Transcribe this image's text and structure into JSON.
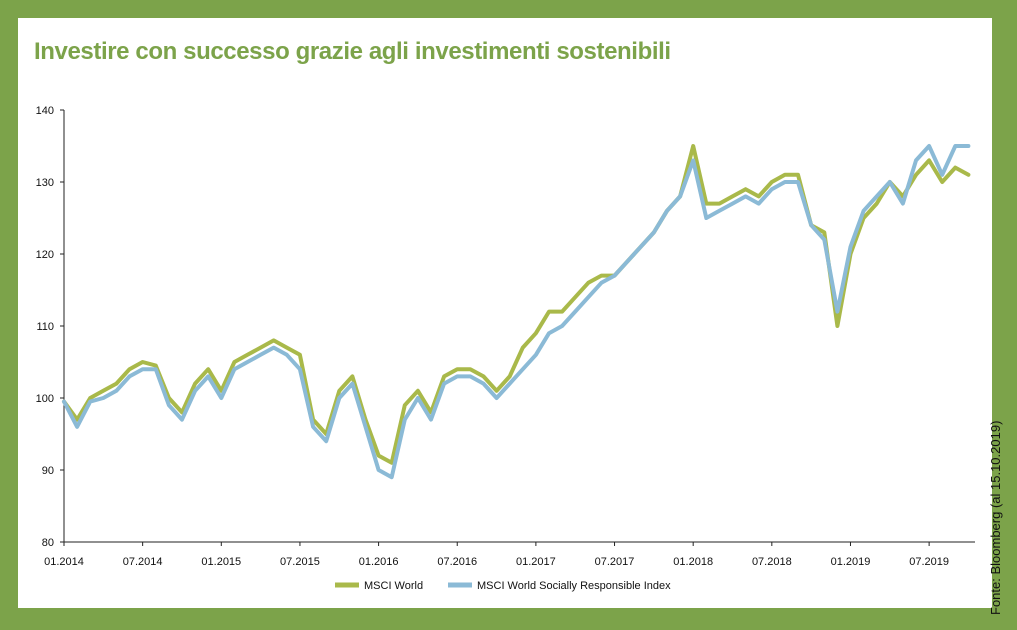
{
  "title": "Investire con successo grazie agli investimenti sostenibili",
  "source": "Fonte: Bloomberg (al 15.10.2019)",
  "colors": {
    "frame": "#7ca34a",
    "msci_world": "#a9b94a",
    "msci_sri": "#8bbad6"
  },
  "chart_data": {
    "type": "line",
    "title": "Investire con successo grazie agli investimenti sostenibili",
    "xlabel": "",
    "ylabel": "",
    "ylim": [
      80,
      140
    ],
    "yticks": [
      80,
      90,
      100,
      110,
      120,
      130,
      140
    ],
    "xlim": [
      "2014-01",
      "2019-10"
    ],
    "xticks": [
      "01.2014",
      "07.2014",
      "01.2015",
      "07.2015",
      "01.2016",
      "07.2016",
      "01.2017",
      "07.2017",
      "01.2018",
      "07.2018",
      "01.2019",
      "07.2019"
    ],
    "grid": false,
    "legend": "bottom-center",
    "x": [
      "2014-01",
      "2014-02",
      "2014-03",
      "2014-04",
      "2014-05",
      "2014-06",
      "2014-07",
      "2014-08",
      "2014-09",
      "2014-10",
      "2014-11",
      "2014-12",
      "2015-01",
      "2015-02",
      "2015-03",
      "2015-04",
      "2015-05",
      "2015-06",
      "2015-07",
      "2015-08",
      "2015-09",
      "2015-10",
      "2015-11",
      "2015-12",
      "2016-01",
      "2016-02",
      "2016-03",
      "2016-04",
      "2016-05",
      "2016-06",
      "2016-07",
      "2016-08",
      "2016-09",
      "2016-10",
      "2016-11",
      "2016-12",
      "2017-01",
      "2017-02",
      "2017-03",
      "2017-04",
      "2017-05",
      "2017-06",
      "2017-07",
      "2017-08",
      "2017-09",
      "2017-10",
      "2017-11",
      "2017-12",
      "2018-01",
      "2018-02",
      "2018-03",
      "2018-04",
      "2018-05",
      "2018-06",
      "2018-07",
      "2018-08",
      "2018-09",
      "2018-10",
      "2018-11",
      "2018-12",
      "2019-01",
      "2019-02",
      "2019-03",
      "2019-04",
      "2019-05",
      "2019-06",
      "2019-07",
      "2019-08",
      "2019-09",
      "2019-10"
    ],
    "series": [
      {
        "name": "MSCI World",
        "values": [
          99.5,
          97,
          100,
          101,
          102,
          104,
          105,
          104.5,
          100,
          98,
          102,
          104,
          101,
          105,
          106,
          107,
          108,
          107,
          106,
          97,
          95,
          101,
          103,
          97,
          92,
          91,
          99,
          101,
          98,
          103,
          104,
          104,
          103,
          101,
          103,
          107,
          109,
          112,
          112,
          114,
          116,
          117,
          117,
          119,
          121,
          123,
          126,
          128,
          135,
          127,
          127,
          128,
          129,
          128,
          130,
          131,
          131,
          124,
          123,
          110,
          120,
          125,
          127,
          130,
          128,
          131,
          133,
          130,
          132,
          131
        ]
      },
      {
        "name": "MSCI World Socially Responsible Index",
        "values": [
          99.5,
          96,
          99.5,
          100,
          101,
          103,
          104,
          104,
          99,
          97,
          101,
          103,
          100,
          104,
          105,
          106,
          107,
          106,
          104,
          96,
          94,
          100,
          102,
          96,
          90,
          89,
          97,
          100,
          97,
          102,
          103,
          103,
          102,
          100,
          102,
          104,
          106,
          109,
          110,
          112,
          114,
          116,
          117,
          119,
          121,
          123,
          126,
          128,
          133,
          125,
          126,
          127,
          128,
          127,
          129,
          130,
          130,
          124,
          122,
          112,
          121,
          126,
          128,
          130,
          127,
          133,
          135,
          131,
          135,
          135
        ]
      }
    ]
  }
}
